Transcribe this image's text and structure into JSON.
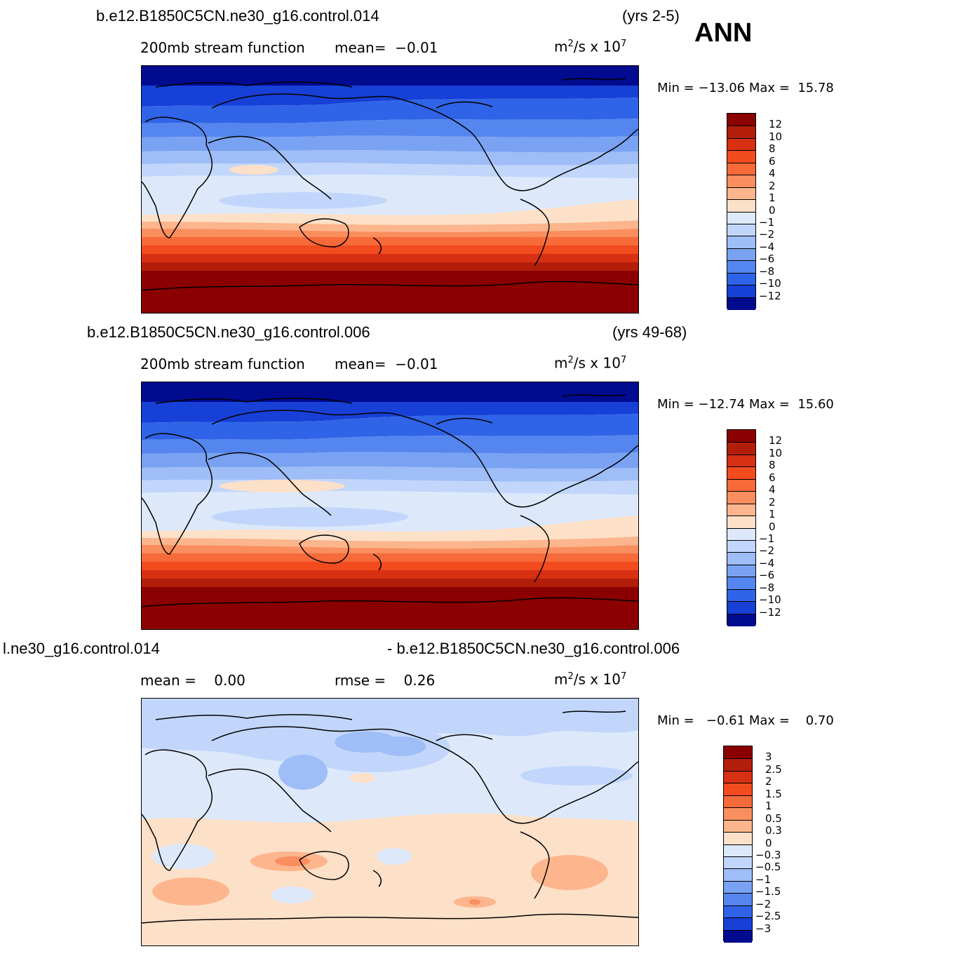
{
  "season": "ANN",
  "panels": [
    {
      "case": "b.e12.B1850C5CN.ne30_g16.control.014",
      "years": "(yrs 2-5)",
      "subtitle_left": "200mb stream function",
      "subtitle_right_label": "mean=",
      "subtitle_right_value": "−0.01",
      "units_base": "m",
      "units_sup": "2",
      "units_mid": "/s  x  10",
      "units_exp": "7",
      "min_label": "Min =",
      "min_value": "−13.06",
      "max_label": "Max =",
      "max_value": "15.78",
      "colorbar": {
        "labels": [
          "12",
          "10",
          "8",
          "6",
          "4",
          "2",
          "1",
          "0",
          "−1",
          "−2",
          "−4",
          "−6",
          "−8",
          "−10",
          "−12"
        ],
        "colors": [
          "#8b0000",
          "#b31e0a",
          "#d73012",
          "#f14b1e",
          "#f76a3a",
          "#fa8e5e",
          "#fcb58c",
          "#fde0c8",
          "#dde9fb",
          "#c1d6fa",
          "#9fbdf6",
          "#7aa2f2",
          "#5585ee",
          "#2f64e8",
          "#1640d6",
          "#000b8f"
        ]
      }
    },
    {
      "case": "b.e12.B1850C5CN.ne30_g16.control.006",
      "years": "(yrs 49-68)",
      "subtitle_left": "200mb stream function",
      "subtitle_right_label": "mean=",
      "subtitle_right_value": "−0.01",
      "units_base": "m",
      "units_sup": "2",
      "units_mid": "/s  x  10",
      "units_exp": "7",
      "min_label": "Min =",
      "min_value": "−12.74",
      "max_label": "Max =",
      "max_value": "15.60",
      "colorbar": {
        "labels": [
          "12",
          "10",
          "8",
          "6",
          "4",
          "2",
          "1",
          "0",
          "−1",
          "−2",
          "−4",
          "−6",
          "−8",
          "−10",
          "−12"
        ],
        "colors": [
          "#8b0000",
          "#b31e0a",
          "#d73012",
          "#f14b1e",
          "#f76a3a",
          "#fa8e5e",
          "#fcb58c",
          "#fde0c8",
          "#dde9fb",
          "#c1d6fa",
          "#9fbdf6",
          "#7aa2f2",
          "#5585ee",
          "#2f64e8",
          "#1640d6",
          "#000b8f"
        ]
      }
    },
    {
      "case_left": "l.ne30_g16.control.014",
      "case_right": "- b.e12.B1850C5CN.ne30_g16.control.006",
      "mean_label": "mean =",
      "mean_value": "0.00",
      "rmse_label": "rmse =",
      "rmse_value": "0.26",
      "units_base": "m",
      "units_sup": "2",
      "units_mid": "/s  x  10",
      "units_exp": "7",
      "min_label": "Min =",
      "min_value": "−0.61",
      "max_label": "Max =",
      "max_value": "0.70",
      "colorbar": {
        "labels": [
          "3",
          "2.5",
          "2",
          "1.5",
          "1",
          "0.5",
          "0.3",
          "0",
          "−0.3",
          "−0.5",
          "−1",
          "−1.5",
          "−2",
          "−2.5",
          "−3"
        ],
        "colors": [
          "#8b0000",
          "#b31e0a",
          "#d73012",
          "#f14b1e",
          "#f76a3a",
          "#fa8e5e",
          "#fcb58c",
          "#fde0c8",
          "#dde9fb",
          "#c1d6fa",
          "#9fbdf6",
          "#7aa2f2",
          "#5585ee",
          "#2f64e8",
          "#1640d6",
          "#000b8f"
        ]
      }
    }
  ]
}
